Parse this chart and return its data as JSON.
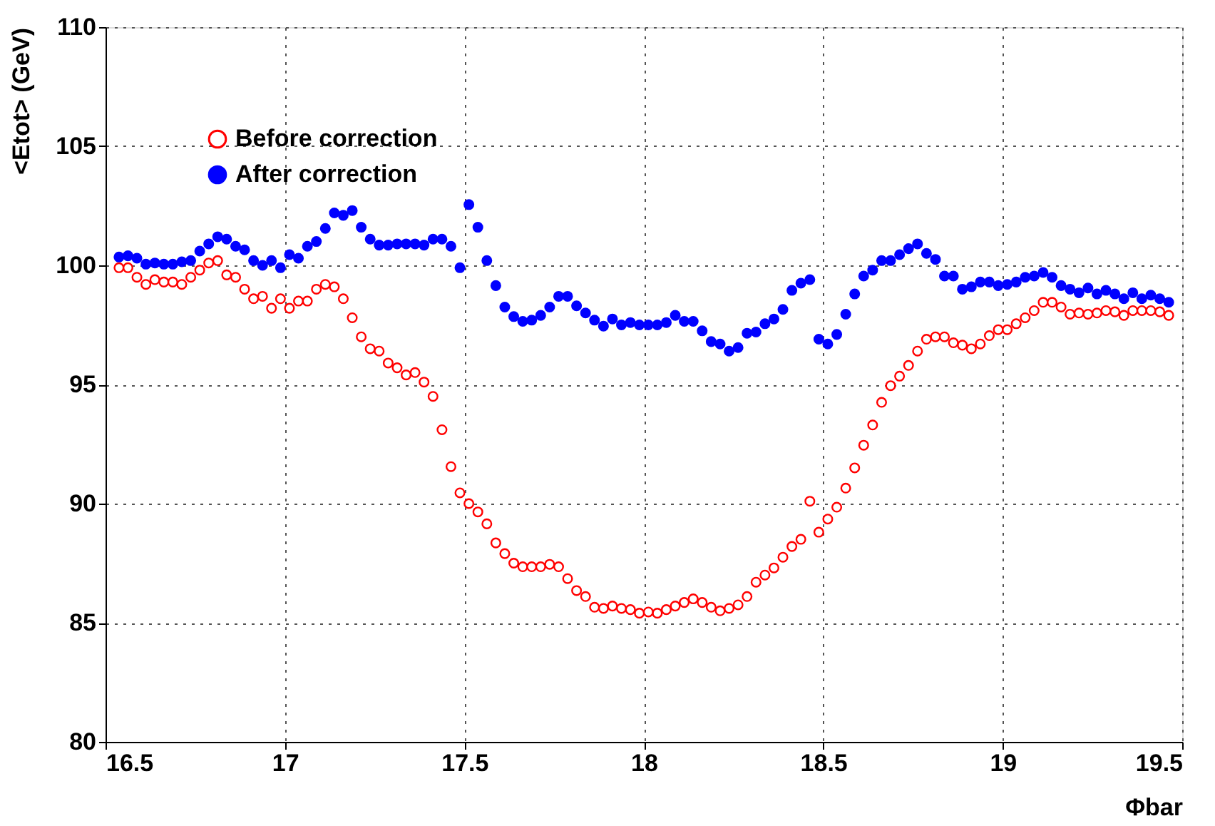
{
  "chart_data": {
    "type": "scatter",
    "xlabel": "Φbar",
    "ylabel": "<Etot> (GeV)",
    "xlim": [
      16.5,
      19.5
    ],
    "xticks": [
      16.5,
      17,
      17.5,
      18,
      18.5,
      19,
      19.5
    ],
    "ylim": [
      80,
      110
    ],
    "yticks": [
      80,
      85,
      90,
      95,
      100,
      105,
      110
    ],
    "grid": true,
    "legend": "top left",
    "marker": "circle",
    "x": [
      16.5375,
      16.5625,
      16.5875,
      16.6125,
      16.6375,
      16.6625,
      16.6875,
      16.7125,
      16.7375,
      16.7625,
      16.7875,
      16.8125,
      16.8375,
      16.8625,
      16.8875,
      16.9125,
      16.9375,
      16.9625,
      16.9875,
      17.0125,
      17.0375,
      17.0625,
      17.0875,
      17.1125,
      17.1375,
      17.1625,
      17.1875,
      17.2125,
      17.2375,
      17.2625,
      17.2875,
      17.3125,
      17.3375,
      17.3625,
      17.3875,
      17.4125,
      17.4375,
      17.4625,
      17.4875,
      17.5125,
      17.5375,
      17.5625,
      17.5875,
      17.6125,
      17.6375,
      17.6625,
      17.6875,
      17.7125,
      17.7375,
      17.7625,
      17.7875,
      17.8125,
      17.8375,
      17.8625,
      17.8875,
      17.9125,
      17.9375,
      17.9625,
      17.9875,
      18.0125,
      18.0375,
      18.0625,
      18.0875,
      18.1125,
      18.1375,
      18.1625,
      18.1875,
      18.2125,
      18.2375,
      18.2625,
      18.2875,
      18.3125,
      18.3375,
      18.3625,
      18.3875,
      18.4125,
      18.4375,
      18.4625,
      18.4875,
      18.5125,
      18.5375,
      18.5625,
      18.5875,
      18.6125,
      18.6375,
      18.6625,
      18.6875,
      18.7125,
      18.7375,
      18.7625,
      18.7875,
      18.8125,
      18.8375,
      18.8625,
      18.8875,
      18.9125,
      18.9375,
      18.9625,
      18.9875,
      19.0125,
      19.0375,
      19.0625,
      19.0875,
      19.1125,
      19.1375,
      19.1625,
      19.1875,
      19.2125,
      19.2375,
      19.2625,
      19.2875,
      19.3125,
      19.3375,
      19.3625,
      19.3875,
      19.4125,
      19.4375,
      19.4625
    ],
    "series": [
      {
        "name": "Before correction",
        "color": "#ff0000",
        "values": [
          99.9,
          99.9,
          99.5,
          99.2,
          99.4,
          99.3,
          99.3,
          99.2,
          99.5,
          99.8,
          100.1,
          100.2,
          99.6,
          99.5,
          99.0,
          98.6,
          98.7,
          98.2,
          98.6,
          98.2,
          98.5,
          98.5,
          99.0,
          99.2,
          99.1,
          98.6,
          97.8,
          97.0,
          96.5,
          96.4,
          95.9,
          95.7,
          95.4,
          95.5,
          95.1,
          94.5,
          93.1,
          91.55,
          90.45,
          90.0,
          89.65,
          89.15,
          88.35,
          87.9,
          87.5,
          87.35,
          87.35,
          87.35,
          87.45,
          87.35,
          86.85,
          86.35,
          86.1,
          85.65,
          85.6,
          85.7,
          85.6,
          85.55,
          85.4,
          85.45,
          85.4,
          85.55,
          85.7,
          85.85,
          86.0,
          85.85,
          85.65,
          85.5,
          85.6,
          85.75,
          86.1,
          86.7,
          87.0,
          87.3,
          87.75,
          88.2,
          88.5,
          90.1,
          88.8,
          89.35,
          89.85,
          90.65,
          91.5,
          92.45,
          93.3,
          94.25,
          94.95,
          95.35,
          95.8,
          96.4,
          96.9,
          97.0,
          97.0,
          96.75,
          96.65,
          96.5,
          96.7,
          97.05,
          97.3,
          97.3,
          97.55,
          97.8,
          98.1,
          98.45,
          98.45,
          98.25,
          97.95,
          98.0,
          97.95,
          98.0,
          98.1,
          98.05,
          97.9,
          98.1,
          98.1,
          98.1,
          98.05,
          97.9
        ]
      },
      {
        "name": "After correction",
        "color": "#0000ff",
        "values": [
          100.35,
          100.4,
          100.3,
          100.05,
          100.1,
          100.05,
          100.05,
          100.15,
          100.2,
          100.6,
          100.9,
          101.2,
          101.1,
          100.8,
          100.65,
          100.2,
          100.0,
          100.2,
          99.9,
          100.45,
          100.3,
          100.8,
          101.0,
          101.55,
          102.2,
          102.1,
          102.3,
          101.6,
          101.1,
          100.85,
          100.85,
          100.9,
          100.9,
          100.9,
          100.85,
          101.1,
          101.1,
          100.8,
          99.9,
          102.55,
          101.6,
          100.2,
          99.15,
          98.25,
          97.85,
          97.65,
          97.7,
          97.9,
          98.25,
          98.7,
          98.7,
          98.3,
          98.0,
          97.7,
          97.45,
          97.75,
          97.5,
          97.6,
          97.5,
          97.5,
          97.5,
          97.6,
          97.9,
          97.65,
          97.65,
          97.25,
          96.8,
          96.7,
          96.4,
          96.55,
          97.15,
          97.2,
          97.55,
          97.75,
          98.15,
          98.95,
          99.25,
          99.4,
          96.9,
          96.7,
          97.1,
          97.95,
          98.8,
          99.55,
          99.8,
          100.2,
          100.2,
          100.45,
          100.7,
          100.9,
          100.5,
          100.25,
          99.55,
          99.55,
          99.0,
          99.1,
          99.3,
          99.3,
          99.15,
          99.2,
          99.3,
          99.5,
          99.55,
          99.7,
          99.5,
          99.15,
          99.0,
          98.85,
          99.05,
          98.8,
          98.95,
          98.8,
          98.6,
          98.85,
          98.6,
          98.75,
          98.6,
          98.45
        ]
      }
    ]
  }
}
